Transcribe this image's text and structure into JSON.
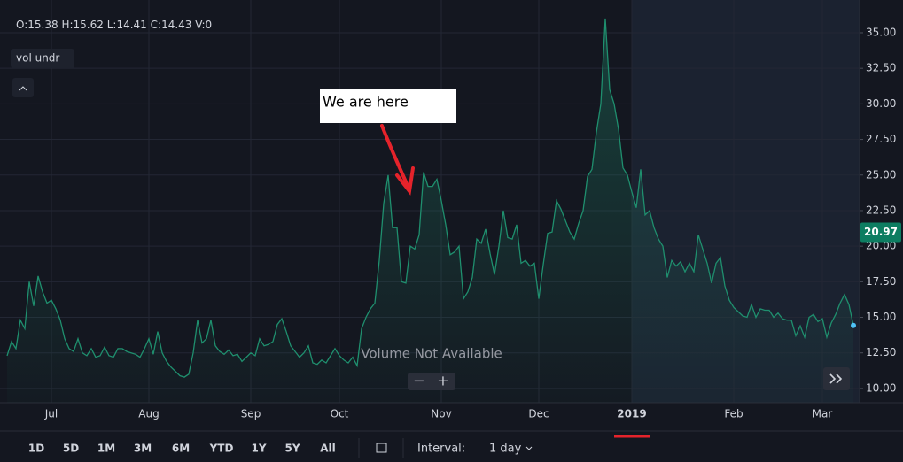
{
  "ohlc": [
    "O:15.38",
    "H:15.62",
    "L:14.41",
    "C:14.43",
    "V:0"
  ],
  "indicator": "vol undr",
  "volume_note": "Volume Not Available",
  "annotation": "We are here",
  "price_tag": 20.97,
  "ranges": [
    "1D",
    "5D",
    "1M",
    "3M",
    "6M",
    "YTD",
    "1Y",
    "5Y",
    "All"
  ],
  "interval_label": "Interval:",
  "interval": "1 day",
  "chart_data": {
    "type": "area",
    "color": "#1f8f6e",
    "ylim": [
      9.0,
      37.3
    ],
    "yticks": [
      {
        "value": 10,
        "label": "10.00"
      },
      {
        "value": 12.5,
        "label": "12.50"
      },
      {
        "value": 15,
        "label": "15.00"
      },
      {
        "value": 17.5,
        "label": "17.50"
      },
      {
        "value": 20,
        "label": "20.00"
      },
      {
        "value": 22.5,
        "label": "22.50"
      },
      {
        "value": 25,
        "label": "25.00"
      },
      {
        "value": 27.5,
        "label": "27.50"
      },
      {
        "value": 30,
        "label": "30.00"
      },
      {
        "value": 32.5,
        "label": "32.50"
      },
      {
        "value": 35,
        "label": "35.00"
      }
    ],
    "grid": true,
    "categories": [
      null,
      null,
      null,
      null,
      null,
      null,
      null,
      null,
      null,
      null,
      "Jul",
      null,
      null,
      null,
      null,
      null,
      null,
      null,
      null,
      null,
      null,
      null,
      null,
      null,
      null,
      null,
      null,
      null,
      null,
      null,
      null,
      null,
      "Aug",
      null,
      null,
      null,
      null,
      null,
      null,
      null,
      null,
      null,
      null,
      null,
      null,
      null,
      null,
      null,
      null,
      null,
      null,
      null,
      null,
      null,
      null,
      "Sep",
      null,
      null,
      null,
      null,
      null,
      null,
      null,
      null,
      null,
      null,
      null,
      null,
      null,
      null,
      null,
      null,
      null,
      null,
      null,
      "Oct",
      null,
      null,
      null,
      null,
      null,
      null,
      null,
      null,
      null,
      null,
      null,
      null,
      null,
      null,
      null,
      null,
      null,
      null,
      null,
      null,
      null,
      null,
      "Nov",
      null,
      null,
      null,
      null,
      null,
      null,
      null,
      null,
      null,
      null,
      null,
      null,
      null,
      null,
      null,
      null,
      null,
      null,
      null,
      null,
      null,
      "Dec",
      null,
      null,
      null,
      null,
      null,
      null,
      null,
      null,
      null,
      null,
      null,
      null,
      null,
      null,
      null,
      null,
      null,
      null,
      null,
      null,
      "2019",
      null,
      null,
      null,
      null,
      null,
      null,
      null,
      null,
      null,
      null,
      null,
      null,
      null,
      null,
      null,
      null,
      null,
      null,
      null,
      null,
      null,
      null,
      "Feb",
      null,
      null,
      null,
      null,
      null,
      null,
      null,
      null,
      null,
      null,
      null,
      null,
      null,
      null,
      null,
      null,
      null,
      null,
      null,
      "Mar",
      null,
      null,
      null,
      null,
      null,
      null,
      null
    ],
    "values": [
      12.3,
      13.3,
      12.8,
      14.8,
      14.2,
      17.5,
      15.8,
      17.9,
      16.8,
      16.0,
      16.2,
      15.6,
      14.8,
      13.5,
      12.8,
      12.6,
      13.5,
      12.5,
      12.3,
      12.8,
      12.2,
      12.3,
      12.9,
      12.3,
      12.2,
      12.8,
      12.8,
      12.6,
      12.5,
      12.4,
      12.2,
      12.8,
      13.5,
      12.4,
      14.0,
      12.5,
      11.9,
      11.5,
      11.2,
      10.9,
      10.8,
      11.0,
      12.5,
      14.8,
      13.2,
      13.5,
      14.8,
      13.0,
      12.6,
      12.4,
      12.7,
      12.3,
      12.4,
      11.9,
      12.2,
      12.5,
      12.3,
      13.5,
      13.0,
      13.1,
      13.3,
      14.5,
      14.9,
      14.0,
      13.0,
      12.6,
      12.2,
      12.5,
      13.0,
      11.8,
      11.7,
      12.0,
      11.8,
      12.3,
      12.8,
      12.3,
      12.0,
      11.8,
      12.2,
      11.6,
      14.2,
      15.0,
      15.6,
      16.0,
      19.0,
      23.0,
      25.0,
      21.3,
      21.3,
      17.5,
      17.4,
      20.0,
      19.8,
      20.8,
      25.2,
      24.2,
      24.2,
      24.7,
      23.2,
      21.5,
      19.4,
      19.6,
      20.0,
      16.3,
      16.8,
      17.8,
      20.5,
      20.2,
      21.2,
      19.5,
      18.0,
      20.0,
      22.5,
      20.6,
      20.5,
      21.5,
      18.8,
      19.0,
      18.6,
      18.8,
      16.3,
      18.7,
      20.9,
      21.0,
      23.2,
      22.6,
      21.8,
      21.0,
      20.5,
      21.6,
      22.5,
      24.9,
      25.4,
      28.0,
      30.0,
      36.0,
      31.0,
      30.0,
      28.2,
      25.5,
      25.0,
      23.8,
      22.7,
      25.4,
      22.2,
      22.5,
      21.3,
      20.5,
      20.0,
      17.8,
      19.0,
      18.6,
      18.9,
      18.2,
      18.8,
      18.2,
      20.8,
      19.8,
      18.8,
      17.4,
      18.8,
      19.2,
      17.2,
      16.2,
      15.7,
      15.4,
      15.1,
      15.0,
      15.9,
      15.0,
      15.6,
      15.5,
      15.5,
      15.0,
      15.3,
      14.9,
      14.8,
      14.8,
      13.7,
      14.4,
      13.6,
      15.0,
      15.2,
      14.7,
      14.9,
      13.6,
      14.6,
      15.2,
      16.0,
      16.6,
      15.9,
      14.43
    ]
  }
}
